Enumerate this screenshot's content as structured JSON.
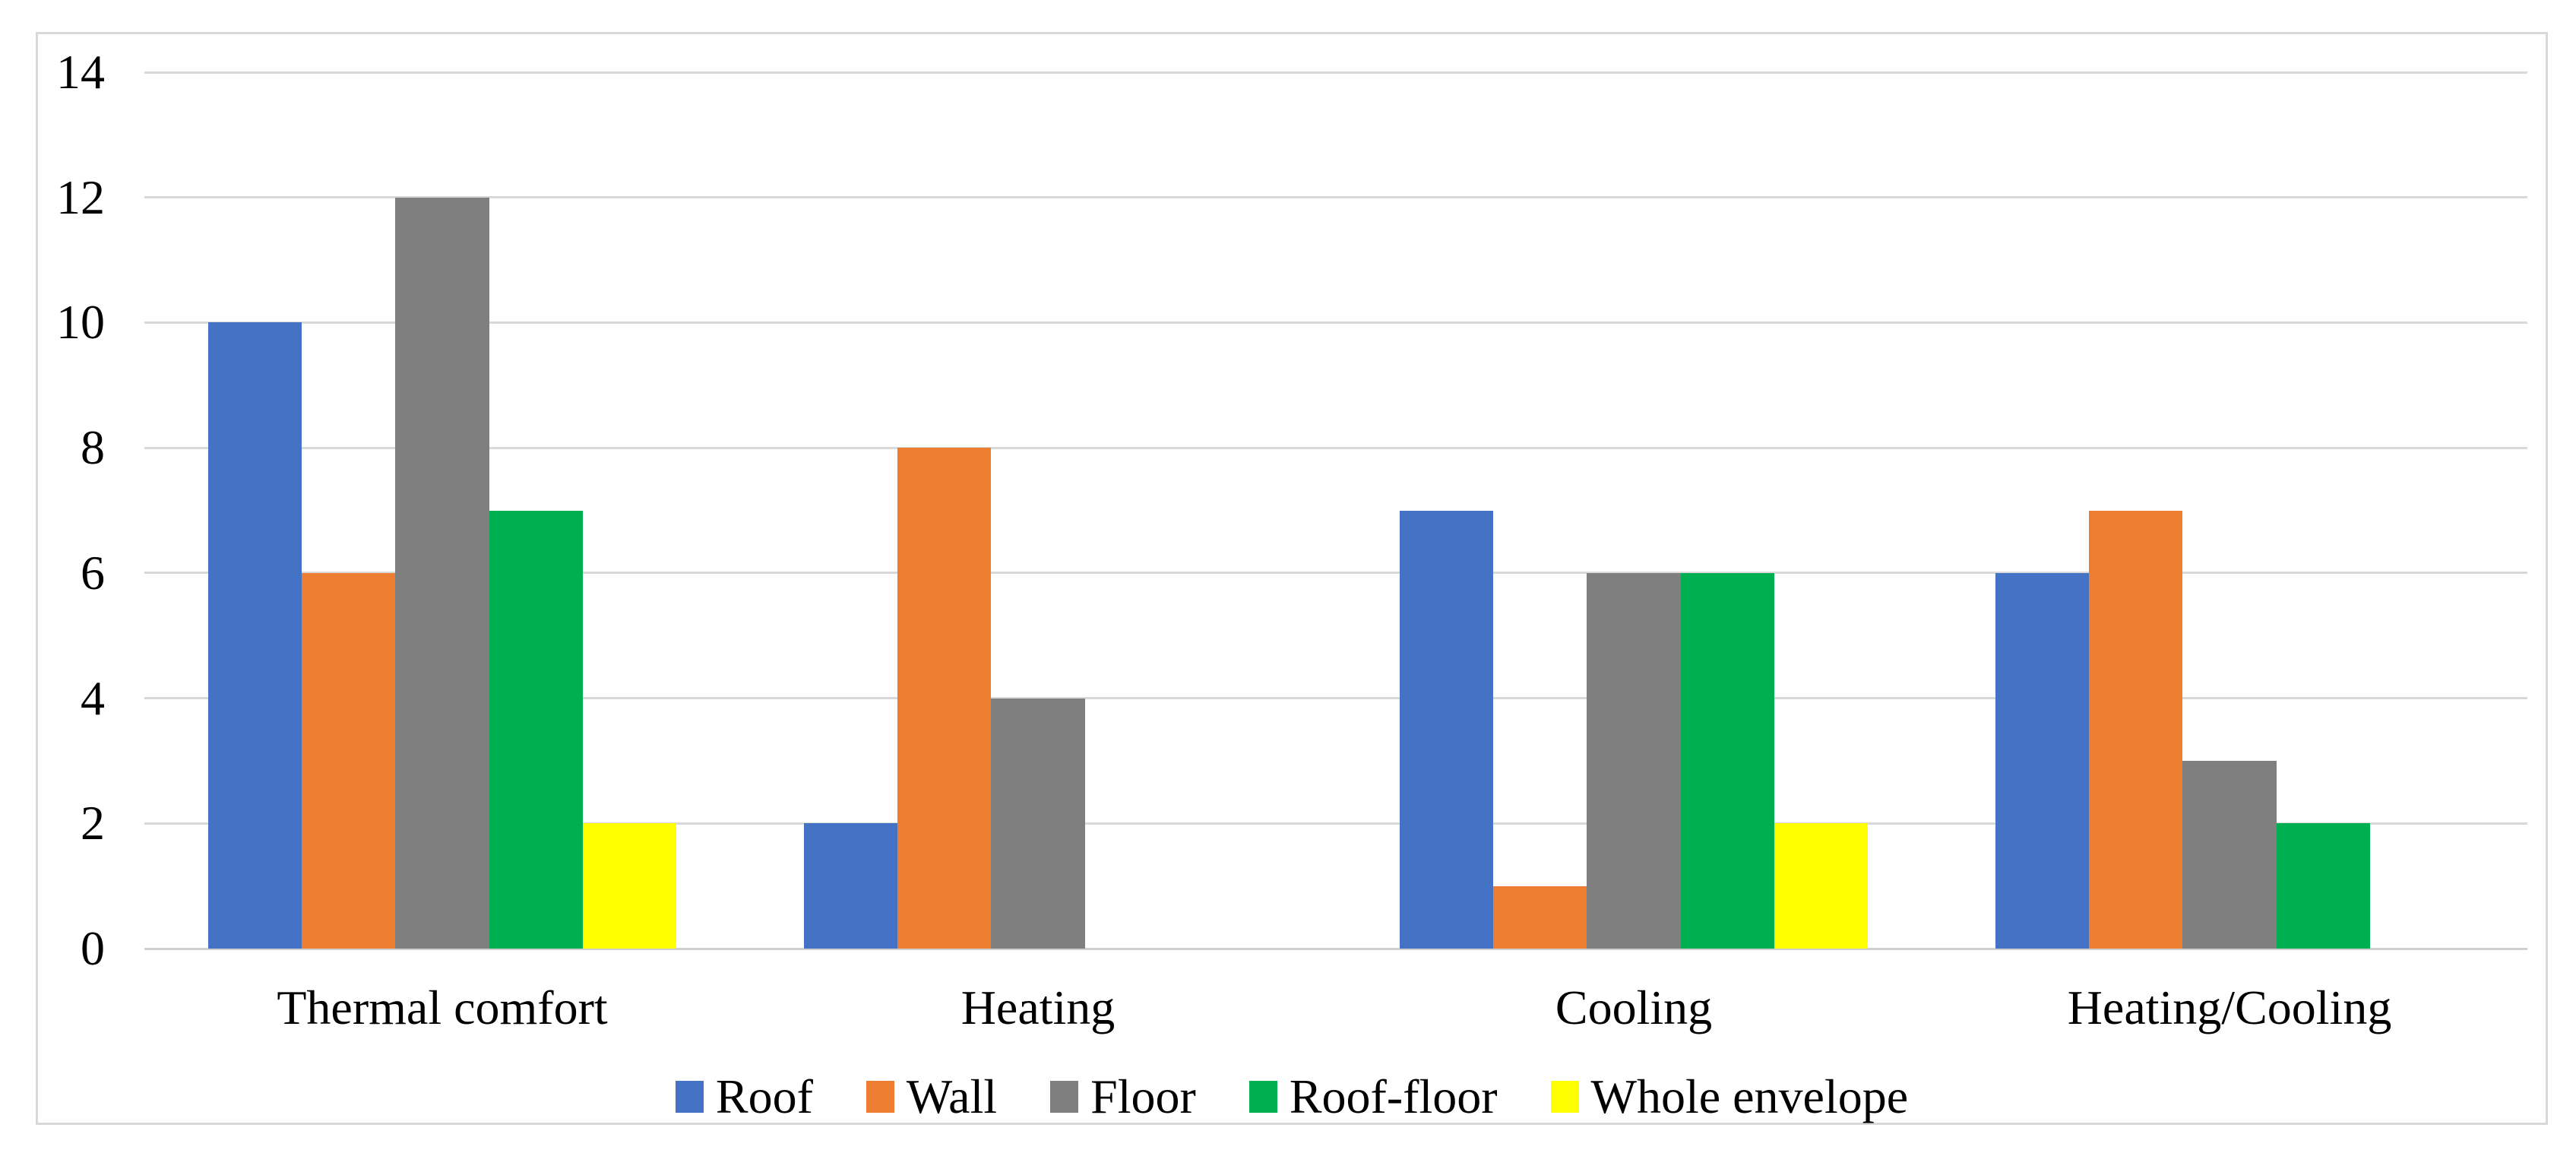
{
  "chart_data": {
    "type": "bar",
    "title": "",
    "xlabel": "",
    "ylabel": "",
    "categories": [
      "Thermal comfort",
      "Heating",
      "Cooling",
      "Heating/Cooling"
    ],
    "series": [
      {
        "name": "Roof",
        "color": "#4472C4",
        "values": [
          10,
          2,
          7,
          6
        ]
      },
      {
        "name": "Wall",
        "color": "#ED7D31",
        "values": [
          6,
          8,
          1,
          7
        ]
      },
      {
        "name": "Floor",
        "color": "#7F7F7F",
        "values": [
          12,
          4,
          6,
          3
        ]
      },
      {
        "name": "Roof-floor",
        "color": "#00B050",
        "values": [
          7,
          0,
          6,
          2
        ]
      },
      {
        "name": "Whole envelope",
        "color": "#FFFF00",
        "values": [
          2,
          0,
          2,
          0
        ]
      }
    ],
    "ylim": [
      0,
      14
    ],
    "yticks": [
      0,
      2,
      4,
      6,
      8,
      10,
      12,
      14
    ],
    "grid": true,
    "legend_position": "bottom-center",
    "palette": {
      "gridline": "#D9D9D9",
      "axis_line": "#CFCFCF",
      "frame_border": "#D9D9D9",
      "background": "#FFFFFF",
      "text": "#000000"
    }
  }
}
